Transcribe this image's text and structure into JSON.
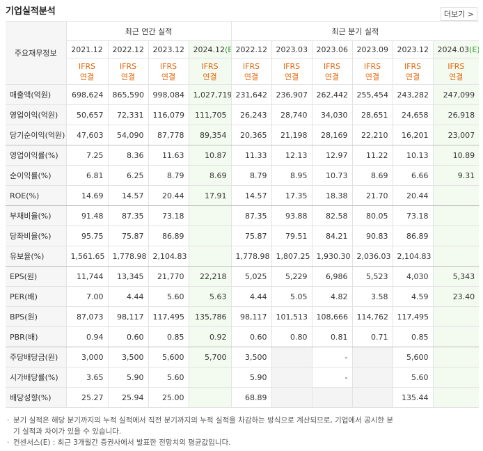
{
  "header": {
    "title": "기업실적분석",
    "more": "더보기"
  },
  "table": {
    "corner": "주요재무정보",
    "groups": [
      "최근 연간 실적",
      "최근 분기 실적"
    ],
    "columns": [
      {
        "period": "2021.12",
        "standard": "IFRS",
        "basis": "연결"
      },
      {
        "period": "2022.12",
        "standard": "IFRS",
        "basis": "연결"
      },
      {
        "period": "2023.12",
        "standard": "IFRS",
        "basis": "연결"
      },
      {
        "period": "2024.12",
        "estimate": "(E)",
        "standard": "IFRS",
        "basis": "연결"
      },
      {
        "period": "2022.12",
        "standard": "IFRS",
        "basis": "연결"
      },
      {
        "period": "2023.03",
        "standard": "IFRS",
        "basis": "연결"
      },
      {
        "period": "2023.06",
        "standard": "IFRS",
        "basis": "연결"
      },
      {
        "period": "2023.09",
        "standard": "IFRS",
        "basis": "연결"
      },
      {
        "period": "2023.12",
        "standard": "IFRS",
        "basis": "연결"
      },
      {
        "period": "2024.03",
        "estimate": "(E)",
        "standard": "IFRS",
        "basis": "연결"
      }
    ],
    "rows": [
      {
        "label": "매출액(억원)",
        "values": [
          "698,624",
          "865,590",
          "998,084",
          "1,027,719",
          "231,642",
          "236,907",
          "262,442",
          "255,454",
          "243,282",
          "247,099"
        ]
      },
      {
        "label": "영업이익(억원)",
        "values": [
          "50,657",
          "72,331",
          "116,079",
          "111,705",
          "26,243",
          "28,740",
          "34,030",
          "28,651",
          "24,658",
          "26,918"
        ]
      },
      {
        "label": "당기순이익(억원)",
        "values": [
          "47,603",
          "54,090",
          "87,778",
          "89,354",
          "20,365",
          "21,198",
          "28,169",
          "22,210",
          "16,201",
          "23,007"
        ]
      },
      {
        "label": "영업이익률(%)",
        "values": [
          "7.25",
          "8.36",
          "11.63",
          "10.87",
          "11.33",
          "12.13",
          "12.97",
          "11.22",
          "10.13",
          "10.89"
        ]
      },
      {
        "label": "순이익률(%)",
        "values": [
          "6.81",
          "6.25",
          "8.79",
          "8.69",
          "8.79",
          "8.95",
          "10.73",
          "8.69",
          "6.66",
          "9.31"
        ]
      },
      {
        "label": "ROE(%)",
        "values": [
          "14.69",
          "14.57",
          "20.44",
          "17.91",
          "14.57",
          "17.35",
          "18.38",
          "21.70",
          "20.44",
          null
        ]
      },
      {
        "label": "부채비율(%)",
        "values": [
          "91.48",
          "87.35",
          "73.18",
          null,
          "87.35",
          "93.88",
          "82.58",
          "80.05",
          "73.18",
          null
        ]
      },
      {
        "label": "당좌비율(%)",
        "values": [
          "95.75",
          "75.87",
          "86.89",
          null,
          "75.87",
          "79.51",
          "84.21",
          "90.83",
          "86.89",
          null
        ]
      },
      {
        "label": "유보율(%)",
        "values": [
          "1,561.65",
          "1,778.98",
          "2,104.83",
          null,
          "1,778.98",
          "1,807.25",
          "1,930.30",
          "2,036.03",
          "2,104.83",
          null
        ]
      },
      {
        "label": "EPS(원)",
        "values": [
          "11,744",
          "13,345",
          "21,770",
          "22,218",
          "5,025",
          "5,229",
          "6,986",
          "5,523",
          "4,030",
          "5,343"
        ]
      },
      {
        "label": "PER(배)",
        "values": [
          "7.00",
          "4.44",
          "5.60",
          "5.63",
          "4.44",
          "5.05",
          "4.82",
          "3.58",
          "4.59",
          "23.40"
        ]
      },
      {
        "label": "BPS(원)",
        "values": [
          "87,073",
          "98,117",
          "117,495",
          "135,786",
          "98,117",
          "101,513",
          "108,666",
          "114,762",
          "117,495",
          null
        ]
      },
      {
        "label": "PBR(배)",
        "values": [
          "0.94",
          "0.60",
          "0.85",
          "0.92",
          "0.60",
          "0.80",
          "0.81",
          "0.71",
          "0.85",
          null
        ]
      },
      {
        "label": "주당배당금(원)",
        "values": [
          "3,000",
          "3,500",
          "5,600",
          "5,700",
          "3,500",
          null,
          "-",
          null,
          "5,600",
          null
        ]
      },
      {
        "label": "시가배당률(%)",
        "values": [
          "3.65",
          "5.90",
          "5.60",
          null,
          "5.90",
          null,
          "-",
          null,
          "5.60",
          null
        ]
      },
      {
        "label": "배당성향(%)",
        "values": [
          "25.27",
          "25.94",
          "25.00",
          null,
          "68.89",
          null,
          null,
          null,
          "135.44",
          null
        ]
      }
    ]
  },
  "notes": [
    "분기 실적은 해당 분기까지의 누적 실적에서 직전 분기까지의 누적 실적을 차감하는 방식으로 계산되므로, 기업에서 공시한 분기 실적과 차이가 있을 수 있습니다.",
    "컨센서스(E) : 최근 3개월간 증권사에서 발표한 전망치의 평균값입니다."
  ]
}
